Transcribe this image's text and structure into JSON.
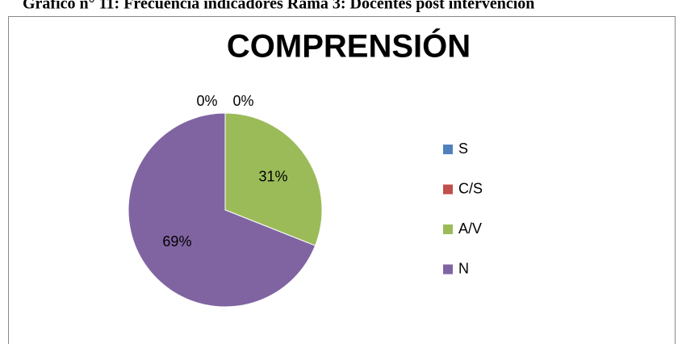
{
  "caption": "Gráfico n° 11: Frecuencia indicadores Rama 3: Docentes post intervención",
  "chart_data": {
    "type": "pie",
    "title": "COMPRENSIÓN",
    "categories": [
      "S",
      "C/S",
      "A/V",
      "N"
    ],
    "values": [
      0,
      0,
      31,
      69
    ],
    "value_labels": [
      "0%",
      "0%",
      "31%",
      "69%"
    ],
    "colors": [
      "#4f81bd",
      "#c0504d",
      "#9bbb59",
      "#8064a2"
    ],
    "legend": "right"
  }
}
